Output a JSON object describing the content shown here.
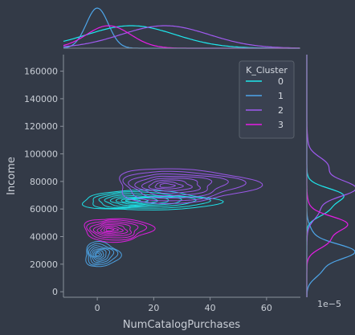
{
  "chart_data": {
    "type": "kde_jointplot",
    "xlabel": "NumCatalogPurchases",
    "ylabel": "Income",
    "x_ticks": [
      "0",
      "20",
      "40",
      "60"
    ],
    "y_ticks": [
      "0",
      "20000",
      "40000",
      "60000",
      "80000",
      "100000",
      "120000",
      "140000",
      "160000"
    ],
    "xlim": [
      -12,
      72
    ],
    "ylim": [
      -4000,
      172000
    ],
    "marginal_y_scale_label": "1e−5",
    "legend": {
      "title": "K_Cluster",
      "position": "top-right",
      "entries": [
        "0",
        "1",
        "2",
        "3"
      ]
    },
    "series": [
      {
        "name": "0",
        "color": "#1ee8ee",
        "center": [
          12,
          66000
        ],
        "spread": [
          12,
          5000
        ]
      },
      {
        "name": "1",
        "color": "#4ea6ea",
        "center": [
          0,
          27000
        ],
        "spread": [
          3,
          6500
        ]
      },
      {
        "name": "2",
        "color": "#a05af0",
        "center": [
          24,
          77000
        ],
        "spread": [
          12,
          9000
        ]
      },
      {
        "name": "3",
        "color": "#e61ee6",
        "center": [
          4,
          45000
        ],
        "spread": [
          6,
          6000
        ]
      }
    ]
  }
}
